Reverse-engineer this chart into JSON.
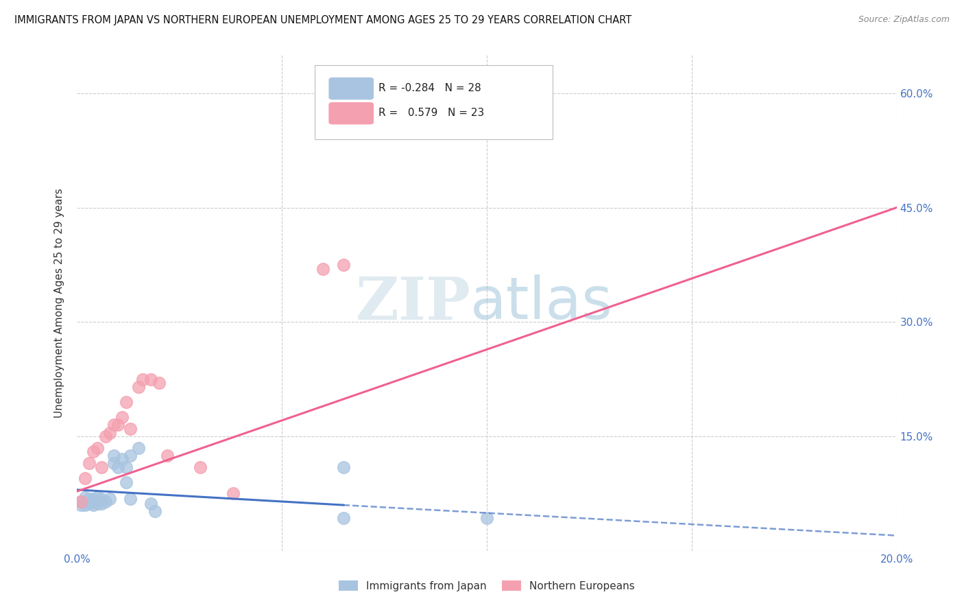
{
  "title": "IMMIGRANTS FROM JAPAN VS NORTHERN EUROPEAN UNEMPLOYMENT AMONG AGES 25 TO 29 YEARS CORRELATION CHART",
  "source": "Source: ZipAtlas.com",
  "ylabel": "Unemployment Among Ages 25 to 29 years",
  "xlim": [
    0.0,
    0.2
  ],
  "ylim": [
    0.0,
    0.65
  ],
  "yticks": [
    0.0,
    0.15,
    0.3,
    0.45,
    0.6
  ],
  "xticks": [
    0.0,
    0.05,
    0.1,
    0.15,
    0.2
  ],
  "xtick_labels": [
    "0.0%",
    "",
    "",
    "",
    "20.0%"
  ],
  "ytick_labels": [
    "",
    "15.0%",
    "30.0%",
    "45.0%",
    "60.0%"
  ],
  "legend_r_japan": "-0.284",
  "legend_n_japan": "28",
  "legend_r_northern": "0.579",
  "legend_n_northern": "23",
  "japan_color": "#a8c4e0",
  "northern_color": "#f4a0b0",
  "japan_line_color": "#4472c4",
  "northern_line_color": "#f06090",
  "background_color": "#ffffff",
  "japan_scatter_x": [
    0.001,
    0.001,
    0.002,
    0.002,
    0.003,
    0.003,
    0.004,
    0.004,
    0.005,
    0.005,
    0.006,
    0.006,
    0.007,
    0.008,
    0.009,
    0.009,
    0.01,
    0.011,
    0.012,
    0.012,
    0.013,
    0.013,
    0.015,
    0.018,
    0.019,
    0.065,
    0.065,
    0.1
  ],
  "japan_scatter_y": [
    0.06,
    0.065,
    0.06,
    0.07,
    0.062,
    0.068,
    0.06,
    0.068,
    0.062,
    0.07,
    0.062,
    0.068,
    0.065,
    0.068,
    0.115,
    0.125,
    0.11,
    0.12,
    0.09,
    0.11,
    0.068,
    0.125,
    0.135,
    0.062,
    0.052,
    0.11,
    0.043,
    0.043
  ],
  "northern_scatter_x": [
    0.001,
    0.002,
    0.003,
    0.004,
    0.005,
    0.006,
    0.007,
    0.008,
    0.009,
    0.01,
    0.011,
    0.012,
    0.013,
    0.015,
    0.016,
    0.018,
    0.02,
    0.022,
    0.03,
    0.038,
    0.06,
    0.065,
    0.065
  ],
  "northern_scatter_y": [
    0.065,
    0.095,
    0.115,
    0.13,
    0.135,
    0.11,
    0.15,
    0.155,
    0.165,
    0.165,
    0.175,
    0.195,
    0.16,
    0.215,
    0.225,
    0.225,
    0.22,
    0.125,
    0.11,
    0.075,
    0.37,
    0.375,
    0.62
  ],
  "japan_line_x0": 0.0,
  "japan_line_y0": 0.08,
  "japan_line_x1": 0.065,
  "japan_line_y1": 0.06,
  "japan_line_x2": 0.2,
  "japan_line_y2": 0.02,
  "northern_line_x0": 0.0,
  "northern_line_y0": 0.078,
  "northern_line_x1": 0.2,
  "northern_line_y1": 0.45
}
